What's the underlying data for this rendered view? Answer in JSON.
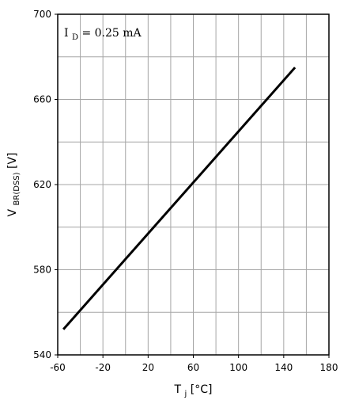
{
  "chart_data": {
    "type": "line",
    "xlabel": {
      "main": "T",
      "sub": "j",
      "unit": "[°C]"
    },
    "ylabel": {
      "main": "V",
      "sub": "BR(DSS)",
      "unit": "[V]"
    },
    "annotation": {
      "main": "I",
      "sub": "D",
      "rest": "= 0.25 mA"
    },
    "xlim": [
      -60,
      180
    ],
    "ylim": [
      540,
      700
    ],
    "x_ticks": [
      -60,
      -20,
      20,
      60,
      100,
      140,
      180
    ],
    "y_ticks": [
      540,
      580,
      620,
      660,
      700
    ],
    "x_minor_step": 20,
    "y_minor_step": 20,
    "grid": true,
    "series": [
      {
        "x": [
          -55,
          150
        ],
        "y": [
          552,
          675
        ]
      }
    ],
    "line_color": "#000000"
  }
}
